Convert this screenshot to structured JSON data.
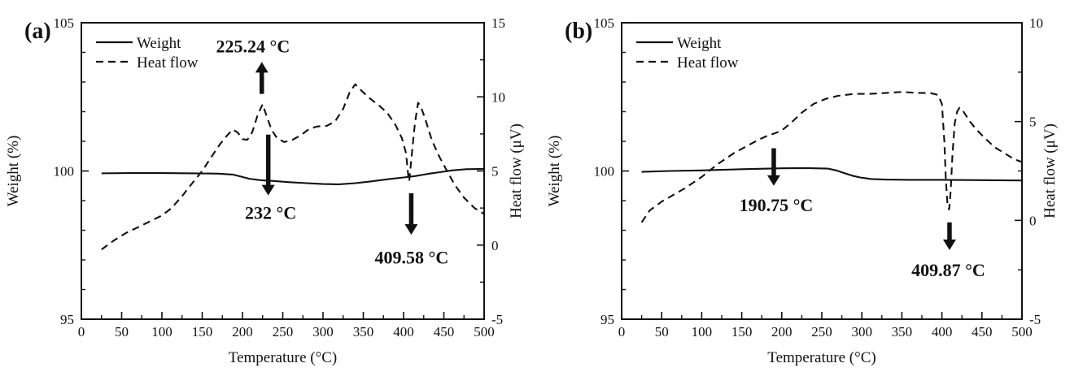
{
  "colors": {
    "ink": "#111111",
    "background": "#ffffff"
  },
  "chart_data": [
    {
      "type": "line",
      "panel_label": "(a)",
      "xlabel": "Temperature (°C)",
      "ylabel_left": "Weight (%)",
      "ylabel_right": "Heat flow (μV)",
      "xlim": [
        0,
        500
      ],
      "x_major_ticks": [
        0,
        50,
        100,
        150,
        200,
        250,
        300,
        350,
        400,
        450,
        500
      ],
      "x_minor_step": 25,
      "ylim_left": [
        95,
        105
      ],
      "y_left_major_ticks": [
        95,
        100,
        105
      ],
      "y_left_minor_step": 1,
      "ylim_right": [
        -5,
        15
      ],
      "y_right_major_ticks": [
        -5,
        0,
        5,
        10,
        15
      ],
      "y_right_minor_step": 2.5,
      "grid": false,
      "legend_position": "top-left-inside",
      "legend": [
        {
          "label": "Weight",
          "line_style": "solid"
        },
        {
          "label": "Heat flow",
          "line_style": "dashed"
        }
      ],
      "series": [
        {
          "name": "Weight",
          "axis": "left",
          "line_style": "solid",
          "points": [
            [
              25,
              99.92
            ],
            [
              60,
              99.93
            ],
            [
              100,
              99.93
            ],
            [
              140,
              99.92
            ],
            [
              170,
              99.91
            ],
            [
              188,
              99.88
            ],
            [
              198,
              99.81
            ],
            [
              208,
              99.74
            ],
            [
              222,
              99.69
            ],
            [
              240,
              99.66
            ],
            [
              260,
              99.62
            ],
            [
              280,
              99.59
            ],
            [
              300,
              99.56
            ],
            [
              320,
              99.55
            ],
            [
              340,
              99.59
            ],
            [
              360,
              99.65
            ],
            [
              380,
              99.72
            ],
            [
              400,
              99.78
            ],
            [
              415,
              99.83
            ],
            [
              430,
              99.9
            ],
            [
              445,
              99.96
            ],
            [
              460,
              100.02
            ],
            [
              478,
              100.06
            ],
            [
              500,
              100.07
            ]
          ]
        },
        {
          "name": "Heat flow",
          "axis": "right",
          "line_style": "dashed",
          "points": [
            [
              25,
              -0.3
            ],
            [
              40,
              0.3
            ],
            [
              55,
              0.8
            ],
            [
              70,
              1.2
            ],
            [
              85,
              1.6
            ],
            [
              100,
              2.0
            ],
            [
              112,
              2.5
            ],
            [
              125,
              3.3
            ],
            [
              138,
              4.2
            ],
            [
              150,
              5.0
            ],
            [
              162,
              6.0
            ],
            [
              172,
              6.8
            ],
            [
              181,
              7.4
            ],
            [
              188,
              7.8
            ],
            [
              194,
              7.6
            ],
            [
              200,
              7.15
            ],
            [
              206,
              7.1
            ],
            [
              212,
              7.6
            ],
            [
              219,
              8.8
            ],
            [
              225,
              9.5
            ],
            [
              230,
              8.7
            ],
            [
              236,
              7.8
            ],
            [
              243,
              7.2
            ],
            [
              252,
              6.95
            ],
            [
              262,
              7.1
            ],
            [
              272,
              7.4
            ],
            [
              282,
              7.8
            ],
            [
              292,
              8.0
            ],
            [
              305,
              8.05
            ],
            [
              315,
              8.35
            ],
            [
              325,
              9.2
            ],
            [
              333,
              10.3
            ],
            [
              340,
              10.85
            ],
            [
              348,
              10.4
            ],
            [
              358,
              9.9
            ],
            [
              370,
              9.4
            ],
            [
              380,
              8.9
            ],
            [
              390,
              8.1
            ],
            [
              398,
              7.2
            ],
            [
              403,
              6.2
            ],
            [
              406,
              4.6
            ],
            [
              407,
              4.3
            ],
            [
              410,
              6.0
            ],
            [
              414,
              8.2
            ],
            [
              418,
              9.6
            ],
            [
              421,
              9.4
            ],
            [
              427,
              8.5
            ],
            [
              435,
              7.1
            ],
            [
              444,
              6.0
            ],
            [
              453,
              5.1
            ],
            [
              463,
              4.1
            ],
            [
              475,
              3.2
            ],
            [
              488,
              2.5
            ],
            [
              500,
              2.1
            ]
          ]
        }
      ],
      "annotations": [
        {
          "text": "225.24 °C",
          "arrow_x": 224,
          "arrow_dir": "up",
          "arrow_tail_hf": 10.2,
          "arrow_tip_hf": 12.35,
          "text_x": 213,
          "text_y_hf": 13.45
        },
        {
          "text": "232 °C",
          "arrow_x": 232,
          "arrow_dir": "down",
          "arrow_tail_hf": 7.45,
          "arrow_tip_hf": 3.35,
          "text_x": 235,
          "text_y_hf": 2.2
        },
        {
          "text": "409.58 °C",
          "arrow_x": 409.5,
          "arrow_dir": "down",
          "arrow_tail_hf": 3.5,
          "arrow_tip_hf": 0.7,
          "text_x": 410,
          "text_y_hf": -0.8
        }
      ]
    },
    {
      "type": "line",
      "panel_label": "(b)",
      "xlabel": "Temperature (°C)",
      "ylabel_left": "Weight (%)",
      "ylabel_right": "Heat flow (μV)",
      "xlim": [
        0,
        500
      ],
      "x_major_ticks": [
        0,
        50,
        100,
        150,
        200,
        250,
        300,
        350,
        400,
        450,
        500
      ],
      "x_minor_step": 25,
      "ylim_left": [
        95,
        105
      ],
      "y_left_major_ticks": [
        95,
        100,
        105
      ],
      "y_left_minor_step": 1,
      "ylim_right": [
        -5,
        10
      ],
      "y_right_major_ticks": [
        -5,
        0,
        5,
        10
      ],
      "y_right_minor_step": 2.5,
      "grid": false,
      "legend_position": "top-left-inside",
      "legend": [
        {
          "label": "Weight",
          "line_style": "solid"
        },
        {
          "label": "Heat flow",
          "line_style": "dashed"
        }
      ],
      "series": [
        {
          "name": "Weight",
          "axis": "left",
          "line_style": "solid",
          "points": [
            [
              25,
              99.97
            ],
            [
              60,
              100.0
            ],
            [
              100,
              100.02
            ],
            [
              150,
              100.06
            ],
            [
              200,
              100.09
            ],
            [
              230,
              100.1
            ],
            [
              258,
              100.08
            ],
            [
              268,
              100.02
            ],
            [
              278,
              99.93
            ],
            [
              288,
              99.84
            ],
            [
              298,
              99.78
            ],
            [
              312,
              99.73
            ],
            [
              330,
              99.71
            ],
            [
              360,
              99.7
            ],
            [
              400,
              99.7
            ],
            [
              450,
              99.69
            ],
            [
              500,
              99.68
            ]
          ]
        },
        {
          "name": "Heat flow",
          "axis": "right",
          "line_style": "dashed",
          "points": [
            [
              25,
              -0.1
            ],
            [
              35,
              0.5
            ],
            [
              50,
              0.95
            ],
            [
              65,
              1.3
            ],
            [
              80,
              1.65
            ],
            [
              100,
              2.2
            ],
            [
              120,
              2.85
            ],
            [
              140,
              3.4
            ],
            [
              158,
              3.8
            ],
            [
              172,
              4.1
            ],
            [
              183,
              4.3
            ],
            [
              191,
              4.4
            ],
            [
              200,
              4.55
            ],
            [
              212,
              4.95
            ],
            [
              225,
              5.45
            ],
            [
              240,
              5.9
            ],
            [
              255,
              6.15
            ],
            [
              270,
              6.3
            ],
            [
              290,
              6.4
            ],
            [
              310,
              6.4
            ],
            [
              330,
              6.45
            ],
            [
              350,
              6.5
            ],
            [
              370,
              6.45
            ],
            [
              385,
              6.45
            ],
            [
              395,
              6.35
            ],
            [
              400,
              5.9
            ],
            [
              403,
              4.0
            ],
            [
              405,
              2.0
            ],
            [
              407,
              0.8
            ],
            [
              409,
              0.55
            ],
            [
              411,
              1.5
            ],
            [
              413,
              3.2
            ],
            [
              416,
              4.9
            ],
            [
              419,
              5.5
            ],
            [
              422,
              5.7
            ],
            [
              427,
              5.5
            ],
            [
              434,
              5.05
            ],
            [
              443,
              4.6
            ],
            [
              454,
              4.15
            ],
            [
              466,
              3.7
            ],
            [
              478,
              3.4
            ],
            [
              490,
              3.1
            ],
            [
              500,
              2.95
            ]
          ]
        }
      ],
      "annotations": [
        {
          "text": "190.75 °C",
          "arrow_x": 190,
          "arrow_dir": "down",
          "arrow_tail_hf": 3.65,
          "arrow_tip_hf": 1.75,
          "text_x": 193,
          "text_y_hf": 0.8
        },
        {
          "text": "409.87 °C",
          "arrow_x": 409.5,
          "arrow_dir": "down",
          "arrow_tail_hf": -0.1,
          "arrow_tip_hf": -1.5,
          "text_x": 408,
          "text_y_hf": -2.5
        }
      ]
    }
  ]
}
